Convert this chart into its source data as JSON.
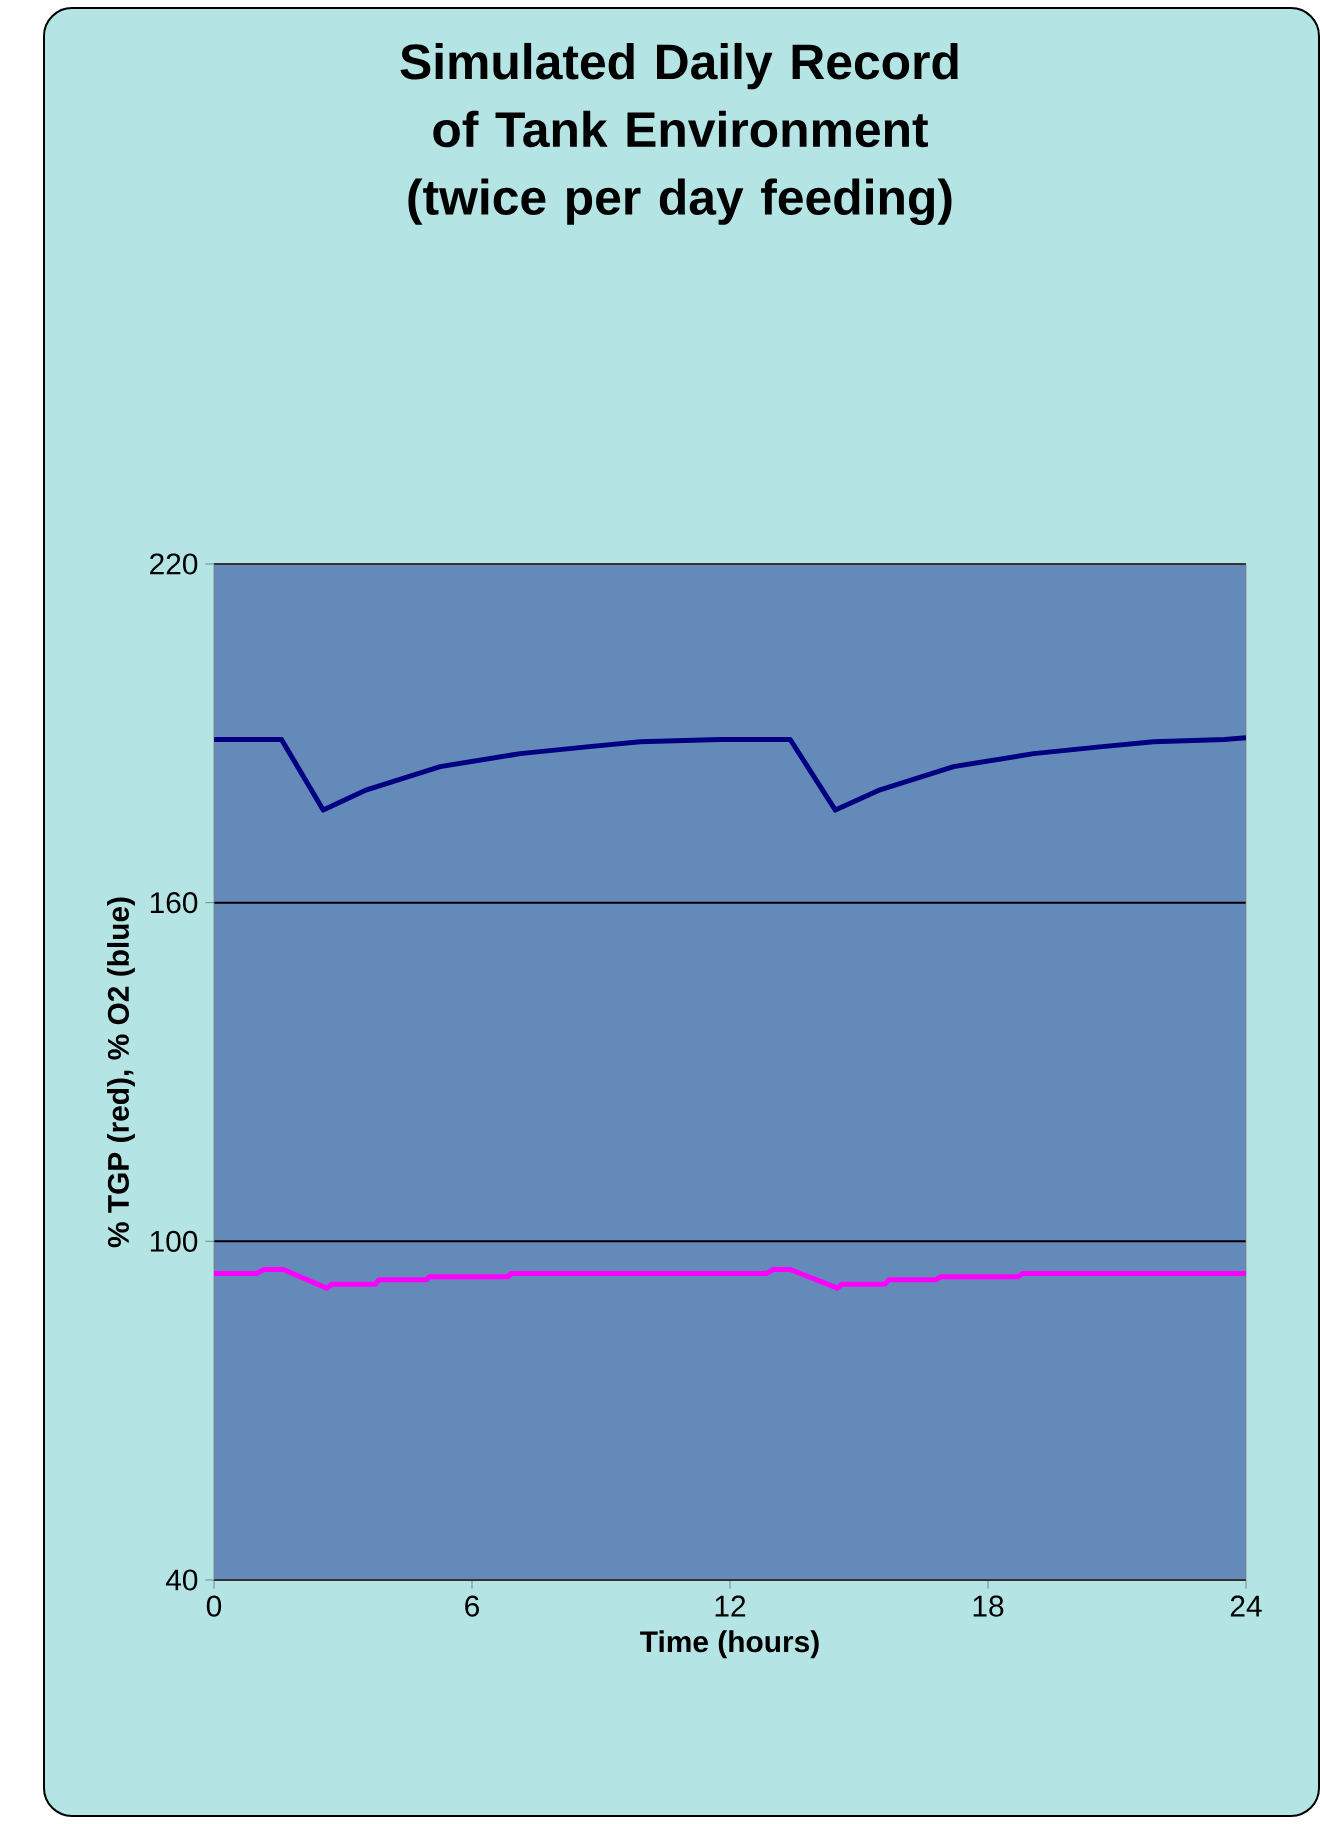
{
  "chart_data": {
    "type": "line",
    "title": "Simulated Daily Record of Tank Environment",
    "subtitle": "(twice per day feeding)",
    "xlabel": "Time (hours)",
    "ylabel": "% TGP (red), % O2 (blue)",
    "xlim": [
      0,
      24
    ],
    "xticks": [
      0,
      6,
      12,
      18,
      24
    ],
    "ylim": [
      40,
      220
    ],
    "yticks": [
      40,
      100,
      160,
      220
    ],
    "grid": "y",
    "marker": "none",
    "line_style": "solid",
    "series": [
      {
        "color": "#000080",
        "x": [
          0,
          1.57,
          2.54,
          3.55,
          5.26,
          7.12,
          8.67,
          9.91,
          11.77,
          13.4,
          14.45,
          15.49,
          17.2,
          19.06,
          20.6,
          21.85,
          23.5,
          24
        ],
        "values": [
          188.9,
          188.9,
          176.4,
          180.0,
          184.1,
          186.4,
          187.6,
          188.5,
          188.9,
          188.9,
          176.4,
          180.0,
          184.1,
          186.4,
          187.6,
          188.5,
          188.9,
          189.2
        ]
      },
      {
        "color": "#ff00ff",
        "x": [
          0,
          1.0,
          1.15,
          1.61,
          2.62,
          2.74,
          3.75,
          3.84,
          4.95,
          5.0,
          6.84,
          6.9,
          12.85,
          13.0,
          13.4,
          14.5,
          14.6,
          15.6,
          15.7,
          16.8,
          16.9,
          18.7,
          18.8,
          24
        ],
        "values": [
          94.3,
          94.3,
          95.0,
          95.0,
          91.7,
          92.4,
          92.4,
          93.2,
          93.2,
          93.7,
          93.7,
          94.3,
          94.3,
          95.0,
          95.0,
          91.7,
          92.4,
          92.4,
          93.2,
          93.2,
          93.7,
          93.7,
          94.3,
          94.3
        ]
      }
    ]
  }
}
